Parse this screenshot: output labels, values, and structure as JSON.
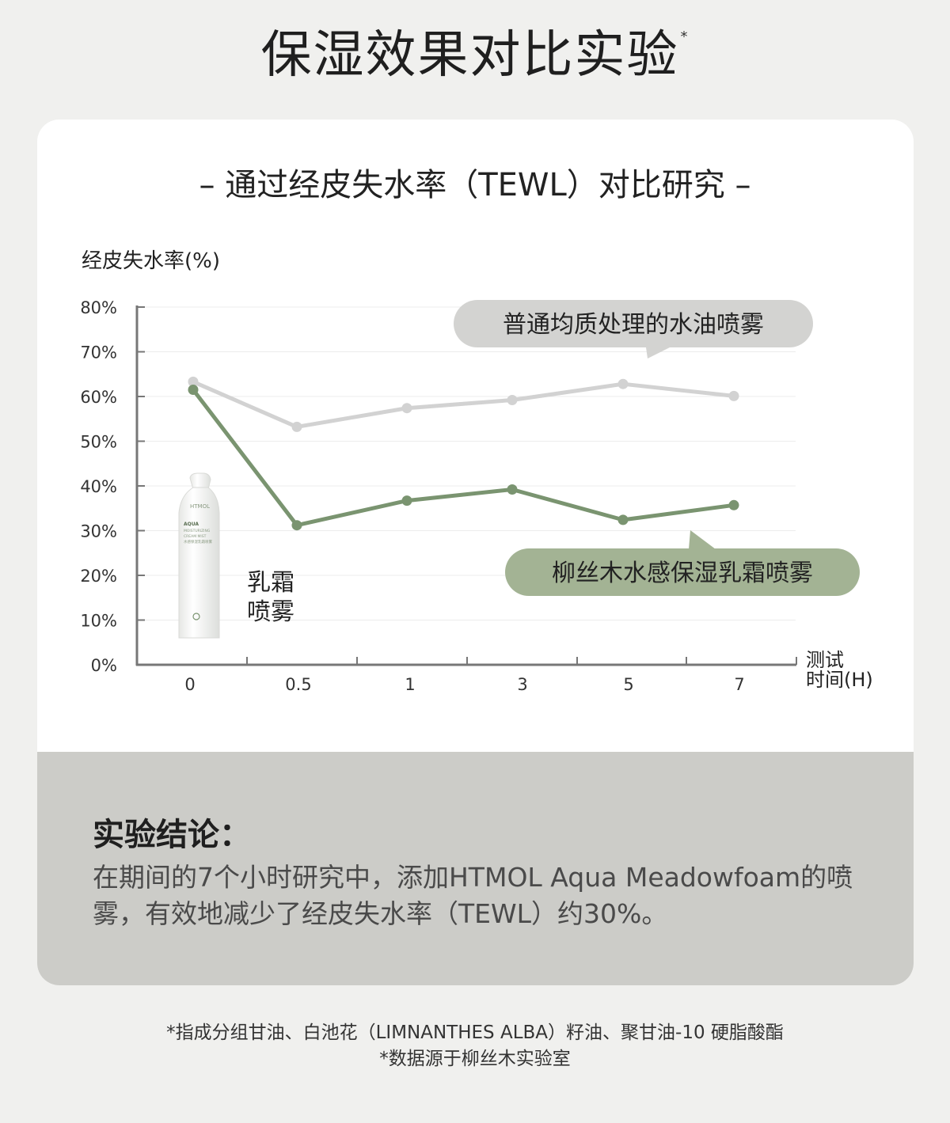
{
  "page_title": "保湿效果对比实验",
  "page_title_mark": "*",
  "subtitle": "– 通过经皮失水率（TEWL）对比研究 –",
  "product_label_line1": "乳霜",
  "product_label_line2": "喷雾",
  "product_bottle_text": {
    "brand": "HTMOL",
    "line1": "AQUA",
    "line2": "MOISTURIZING",
    "line3": "CREAM MIST",
    "line4": "水感保湿乳霜喷雾"
  },
  "chart_data": {
    "type": "line",
    "ylabel": "经皮失水率(%)",
    "xlabel_line1": "测试",
    "xlabel_line2": "时间(H)",
    "categories": [
      "0",
      "0.5",
      "1",
      "3",
      "5",
      "7"
    ],
    "ylim": [
      0,
      80
    ],
    "yticks": [
      "0%",
      "10%",
      "20%",
      "30%",
      "40%",
      "50%",
      "60%",
      "70%",
      "80%"
    ],
    "grid": true,
    "series": [
      {
        "name": "普通均质处理的水油喷雾",
        "color": "#d2d2d2",
        "values": [
          63.3,
          53.2,
          57.4,
          59.2,
          62.8,
          60.1
        ]
      },
      {
        "name": "柳丝木水感保湿乳霜喷雾",
        "color": "#7a9470",
        "values": [
          61.5,
          31.2,
          36.7,
          39.2,
          32.4,
          35.7
        ]
      }
    ]
  },
  "colors": {
    "background": "#f0f0ee",
    "card": "#ffffff",
    "conclusion_bg": "#ccccc8",
    "grey_series": "#d2d2d2",
    "green_series": "#7a9470",
    "green_label_bg": "#a3b394",
    "grey_label_bg": "#d3d3d1"
  },
  "conclusion": {
    "title": "实验结论：",
    "body": "在期间的7个小时研究中，添加HTMOL Aqua Meadowfoam的喷雾，有效地减少了经皮失水率（TEWL）约30%。"
  },
  "footnotes": [
    "*指成分组甘油、白池花（LIMNANTHES ALBA）籽油、聚甘油-10 硬脂酸酯",
    "*数据源于柳丝木实验室"
  ]
}
